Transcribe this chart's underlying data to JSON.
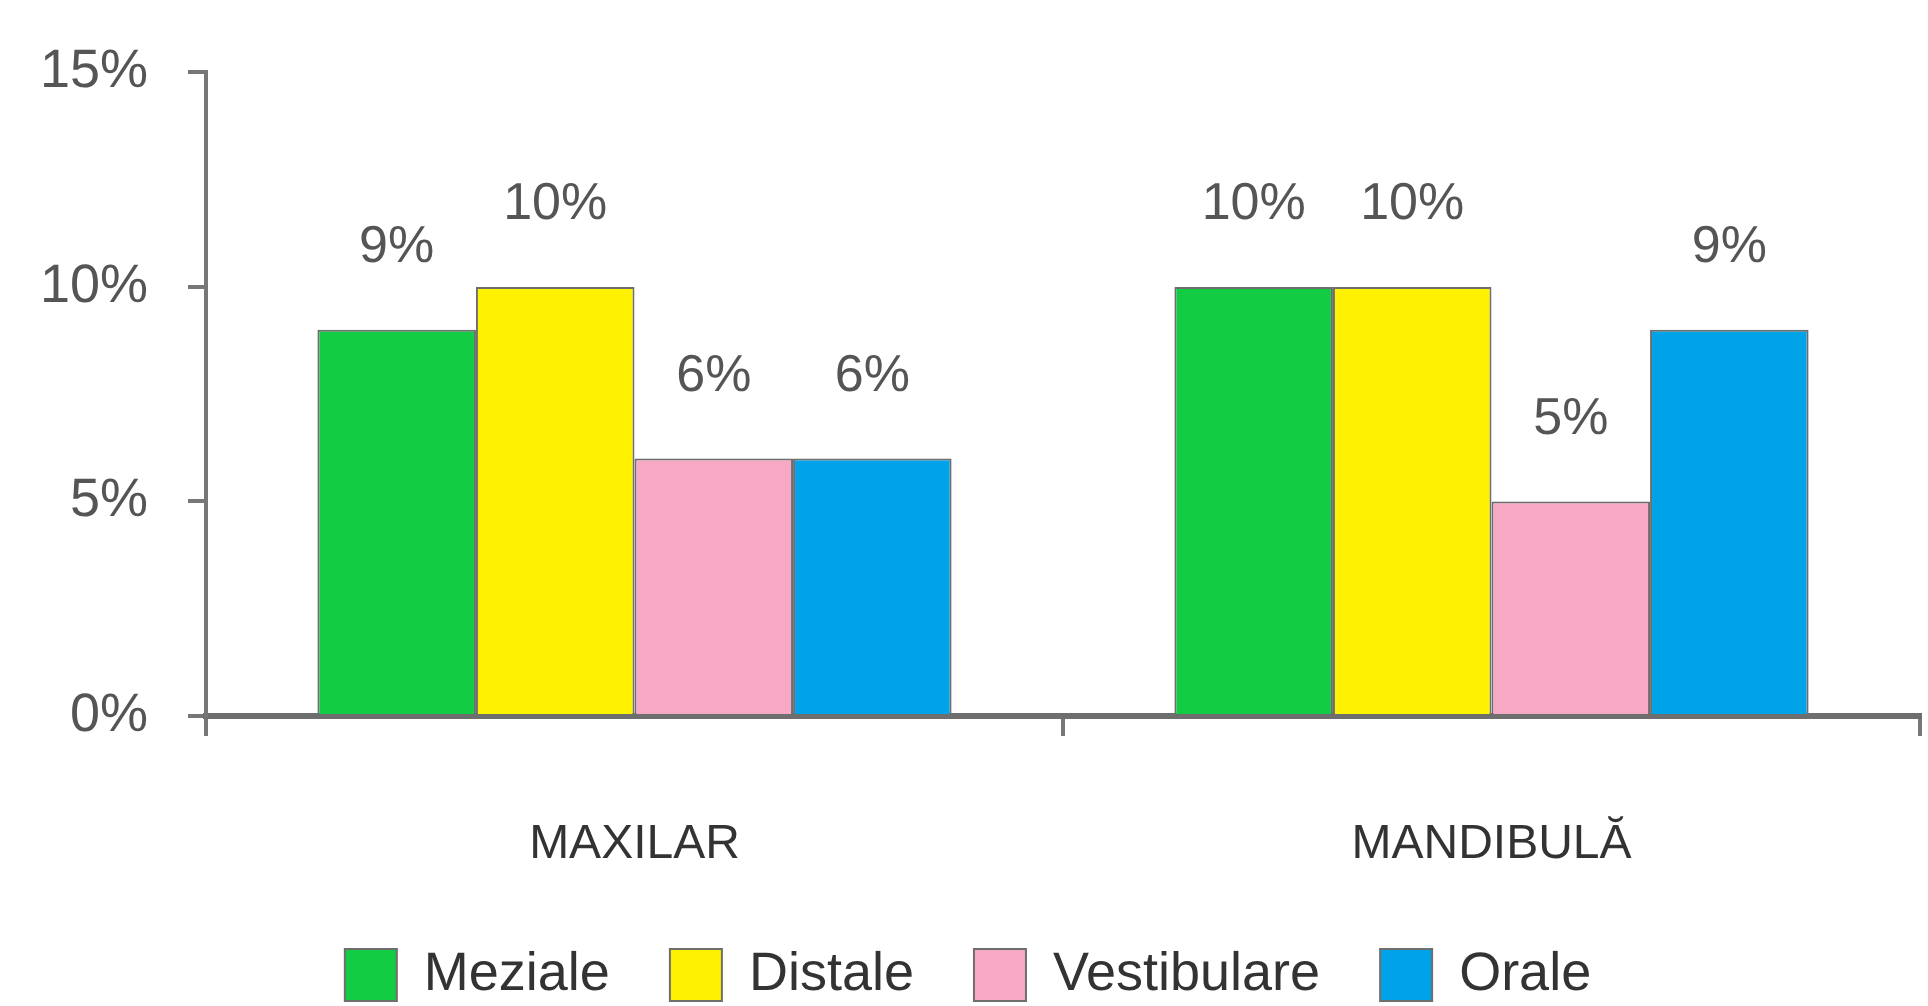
{
  "chart_data": {
    "type": "bar",
    "categories": [
      "MAXILAR",
      "MANDIBULĂ"
    ],
    "series": [
      {
        "name": "Meziale",
        "color": "#12cc44",
        "values": [
          9,
          10
        ],
        "value_labels": [
          "9%",
          "10%"
        ]
      },
      {
        "name": "Distale",
        "color": "#fff200",
        "values": [
          10,
          10
        ],
        "value_labels": [
          "10%",
          "10%"
        ]
      },
      {
        "name": "Vestibulare",
        "color": "#f7a8c4",
        "values": [
          6,
          5
        ],
        "value_labels": [
          "6%",
          "5%"
        ]
      },
      {
        "name": "Orale",
        "color": "#00a2e8",
        "values": [
          6,
          9
        ],
        "value_labels": [
          "6%",
          "9%"
        ]
      }
    ],
    "ylim": [
      0,
      15
    ],
    "yticks": [
      {
        "value": 0,
        "label": "0%"
      },
      {
        "value": 5,
        "label": "5%"
      },
      {
        "value": 10,
        "label": "10%"
      },
      {
        "value": 15,
        "label": "15%"
      }
    ],
    "grid": false,
    "legend": "bottom"
  }
}
